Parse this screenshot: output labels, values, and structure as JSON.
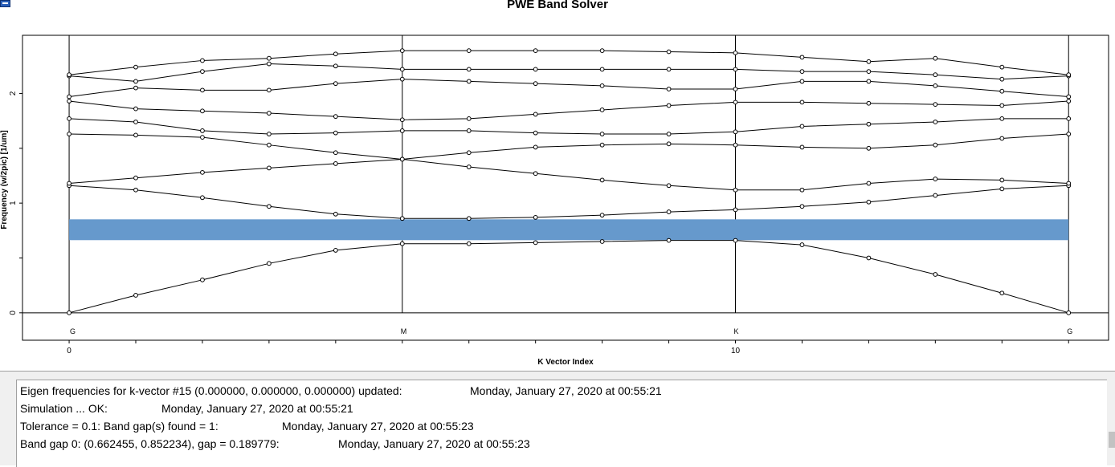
{
  "window": {
    "title": "PWE Band Solver"
  },
  "chart_data": {
    "type": "line",
    "xlabel": "K Vector Index",
    "ylabel": "Frequency (w/2pic) [1/um]",
    "xlim": [
      -0.7,
      15.6
    ],
    "ylim": [
      -0.25,
      2.53
    ],
    "x_ticks": [
      0,
      10
    ],
    "y_ticks": [
      0,
      1,
      2
    ],
    "grid": true,
    "symmetry_points": [
      {
        "label": "G",
        "x": 0
      },
      {
        "label": "M",
        "x": 5
      },
      {
        "label": "K",
        "x": 10
      },
      {
        "label": "G",
        "x": 15
      }
    ],
    "x": [
      0,
      1,
      2,
      3,
      4,
      5,
      6,
      7,
      8,
      9,
      10,
      11,
      12,
      13,
      14,
      15
    ],
    "band_gap": {
      "from": 0.662455,
      "to": 0.852234,
      "color": "#6699cc"
    },
    "series": [
      {
        "values": [
          0.0,
          0.16,
          0.3,
          0.45,
          0.57,
          0.63,
          0.63,
          0.64,
          0.65,
          0.66,
          0.66,
          0.62,
          0.5,
          0.35,
          0.18,
          0.0
        ]
      },
      {
        "values": [
          1.16,
          1.12,
          1.05,
          0.97,
          0.9,
          0.86,
          0.86,
          0.87,
          0.89,
          0.92,
          0.94,
          0.97,
          1.01,
          1.07,
          1.13,
          1.16
        ]
      },
      {
        "values": [
          1.18,
          1.23,
          1.28,
          1.32,
          1.36,
          1.4,
          1.33,
          1.27,
          1.21,
          1.16,
          1.12,
          1.12,
          1.18,
          1.22,
          1.21,
          1.18
        ]
      },
      {
        "values": [
          1.63,
          1.62,
          1.6,
          1.53,
          1.46,
          1.4,
          1.46,
          1.51,
          1.53,
          1.54,
          1.53,
          1.51,
          1.5,
          1.53,
          1.59,
          1.63
        ]
      },
      {
        "values": [
          1.77,
          1.74,
          1.66,
          1.63,
          1.64,
          1.66,
          1.66,
          1.64,
          1.63,
          1.63,
          1.65,
          1.7,
          1.72,
          1.74,
          1.77,
          1.77
        ]
      },
      {
        "values": [
          1.93,
          1.86,
          1.84,
          1.82,
          1.79,
          1.76,
          1.77,
          1.81,
          1.85,
          1.89,
          1.92,
          1.92,
          1.91,
          1.9,
          1.89,
          1.93
        ]
      },
      {
        "values": [
          1.97,
          2.05,
          2.03,
          2.03,
          2.09,
          2.13,
          2.11,
          2.09,
          2.07,
          2.04,
          2.04,
          2.11,
          2.11,
          2.07,
          2.02,
          1.97
        ]
      },
      {
        "values": [
          2.16,
          2.11,
          2.2,
          2.27,
          2.25,
          2.22,
          2.22,
          2.22,
          2.22,
          2.22,
          2.22,
          2.2,
          2.2,
          2.17,
          2.13,
          2.16
        ]
      },
      {
        "values": [
          2.17,
          2.24,
          2.3,
          2.32,
          2.36,
          2.39,
          2.39,
          2.39,
          2.39,
          2.38,
          2.37,
          2.33,
          2.29,
          2.32,
          2.24,
          2.17
        ]
      }
    ]
  },
  "log": {
    "lines": [
      {
        "message": "Eigen frequencies for k-vector #15 (0.000000, 0.000000, 0.000000) updated:",
        "timestamp": "Monday, January 27, 2020 at 00:55:21"
      },
      {
        "message": "Simulation ... OK:",
        "timestamp": "Monday, January 27, 2020 at 00:55:21"
      },
      {
        "message": "Tolerance = 0.1: Band gap(s) found = 1:",
        "timestamp": "Monday, January 27, 2020 at 00:55:23"
      },
      {
        "message": "Band gap 0: (0.662455, 0.852234), gap = 0.189779:",
        "timestamp": "Monday, January 27, 2020 at 00:55:23"
      }
    ]
  }
}
